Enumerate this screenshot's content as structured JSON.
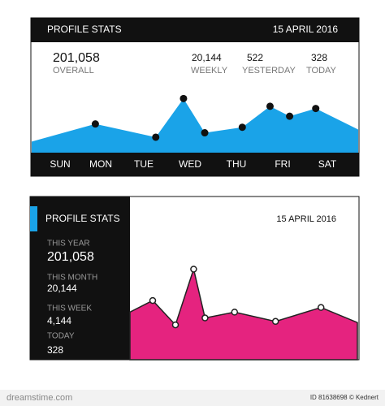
{
  "top_widget": {
    "title": "PROFILE STATS",
    "date": "15 APRIL 2016",
    "stats": [
      {
        "value": "201,058",
        "label": "OVERALL"
      },
      {
        "value": "20,144",
        "label": "WEEKLY"
      },
      {
        "value": "522",
        "label": "YESTERDAY"
      },
      {
        "value": "328",
        "label": "TODAY"
      }
    ],
    "chart": {
      "type": "area",
      "color": "#1aa3e8",
      "marker_color": "#111111",
      "x": [
        0,
        19.5,
        38,
        46.5,
        53,
        64.5,
        73,
        79,
        87,
        100
      ],
      "values": [
        10,
        26,
        14,
        49,
        18,
        23,
        42,
        33,
        40,
        21
      ],
      "xlim": [
        0,
        100
      ],
      "ylim": [
        0,
        100
      ]
    },
    "days": [
      "SUN",
      "MON",
      "TUE",
      "WED",
      "THU",
      "FRI",
      "SAT"
    ]
  },
  "bottom_widget": {
    "title": "PROFILE STATS",
    "date": "15 APRIL 2016",
    "accent_color": "#1aa3e8",
    "stats": [
      {
        "label": "THIS YEAR",
        "value": "201,058"
      },
      {
        "label": "THIS MONTH",
        "value": "20,144"
      },
      {
        "label": "THIS WEEK",
        "value": "4,144"
      },
      {
        "label": "TODAY",
        "value": "328"
      }
    ],
    "chart": {
      "type": "area",
      "color": "#e5237f",
      "marker_color": "#ffffff",
      "x": [
        0,
        10,
        20,
        28,
        33,
        46,
        64,
        84,
        100
      ],
      "values": [
        41,
        51,
        30,
        78,
        36,
        41,
        33,
        45,
        32
      ],
      "xlim": [
        0,
        100
      ],
      "ylim": [
        0,
        100
      ]
    }
  },
  "footer": {
    "logo": "dreamstime.com",
    "credit": "ID 81638698 © Kednert"
  }
}
